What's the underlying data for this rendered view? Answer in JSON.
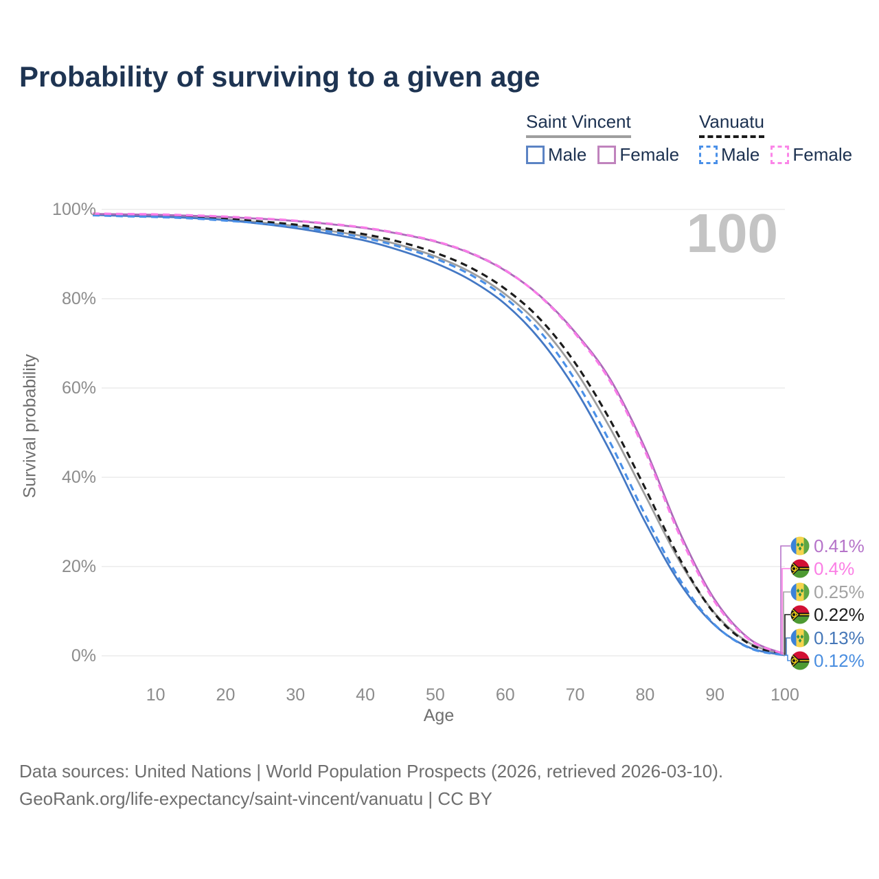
{
  "title": "Probability of surviving to a given age",
  "watermark": "100",
  "legend": {
    "groups": [
      {
        "name": "Saint Vincent",
        "line_style": "solid",
        "items": [
          {
            "label": "Male",
            "color": "#5b83c4"
          },
          {
            "label": "Female",
            "color": "#c083bd"
          }
        ]
      },
      {
        "name": "Vanuatu",
        "line_style": "dashed",
        "items": [
          {
            "label": "Male",
            "color": "#4a90e8"
          },
          {
            "label": "Female",
            "color": "#fb86e8"
          }
        ]
      }
    ]
  },
  "chart_data": {
    "type": "line",
    "title": "Probability of surviving to a given age",
    "xlabel": "Age",
    "ylabel": "Survival probability",
    "xlim": [
      1,
      100
    ],
    "ylim": [
      0,
      100
    ],
    "x_ticks": [
      10,
      20,
      30,
      40,
      50,
      60,
      70,
      80,
      90,
      100
    ],
    "y_ticks": [
      0,
      20,
      40,
      60,
      80,
      100
    ],
    "y_tick_suffix": "%",
    "grid": "horizontal",
    "ages": [
      1,
      5,
      10,
      15,
      20,
      25,
      30,
      35,
      40,
      45,
      50,
      55,
      60,
      65,
      70,
      75,
      80,
      85,
      90,
      95,
      100
    ],
    "series": [
      {
        "name": "Saint Vincent Overall",
        "country": "Saint Vincent",
        "sex": "overall",
        "color": "#9e9e9e",
        "line_style": "solid",
        "values": [
          98.9,
          98.7,
          98.5,
          98.2,
          97.8,
          97.1,
          96.3,
          95.2,
          93.9,
          92.0,
          89.5,
          86.0,
          81.0,
          74.0,
          64.0,
          51.0,
          36.0,
          21.0,
          9.5,
          2.8,
          0.25
        ]
      },
      {
        "name": "Vanuatu Overall",
        "country": "Vanuatu",
        "sex": "overall",
        "color": "#1c1c1c",
        "line_style": "dashed",
        "values": [
          98.9,
          98.8,
          98.6,
          98.3,
          97.9,
          97.3,
          96.6,
          95.6,
          94.4,
          92.7,
          90.3,
          87.0,
          82.2,
          75.4,
          65.6,
          52.8,
          37.6,
          21.6,
          9.3,
          2.6,
          0.22
        ]
      },
      {
        "name": "Saint Vincent Male",
        "country": "Saint Vincent",
        "sex": "male",
        "color": "#4478c4",
        "line_style": "solid",
        "values": [
          98.8,
          98.6,
          98.4,
          98.1,
          97.6,
          96.8,
          95.8,
          94.5,
          93.0,
          90.8,
          88.0,
          84.2,
          78.8,
          70.8,
          59.8,
          45.8,
          30.0,
          16.2,
          6.8,
          1.8,
          0.13
        ]
      },
      {
        "name": "Vanuatu Male",
        "country": "Vanuatu",
        "sex": "male",
        "color": "#4a90e8",
        "line_style": "dashed",
        "values": [
          98.7,
          98.5,
          98.3,
          98.0,
          97.5,
          96.9,
          96.1,
          95.0,
          93.6,
          91.6,
          89.0,
          85.4,
          80.2,
          72.6,
          61.8,
          47.8,
          31.6,
          17.0,
          6.9,
          1.7,
          0.12
        ]
      },
      {
        "name": "Saint Vincent Female",
        "country": "Saint Vincent",
        "sex": "female",
        "color": "#ab6ab8",
        "line_style": "solid",
        "values": [
          99.0,
          98.9,
          98.8,
          98.6,
          98.3,
          97.9,
          97.4,
          96.7,
          95.8,
          94.5,
          92.8,
          90.2,
          86.3,
          80.6,
          72.5,
          62.0,
          46.5,
          27.5,
          12.5,
          3.7,
          0.41
        ]
      },
      {
        "name": "Vanuatu Female",
        "country": "Vanuatu",
        "sex": "female",
        "color": "#f97ce8",
        "line_style": "dashed",
        "values": [
          99.1,
          99.0,
          98.9,
          98.7,
          98.4,
          98.0,
          97.5,
          96.8,
          95.9,
          94.6,
          92.9,
          90.3,
          86.4,
          80.5,
          72.2,
          61.5,
          45.8,
          26.8,
          12.0,
          3.5,
          0.4
        ]
      }
    ]
  },
  "end_labels": [
    {
      "flag": "saint-vincent-flag",
      "value": "0.41%",
      "end_value": 0.41,
      "color": "#b573c9"
    },
    {
      "flag": "vanuatu-flag",
      "value": "0.4%",
      "end_value": 0.4,
      "color": "#fb7ee5"
    },
    {
      "flag": "saint-vincent-flag",
      "value": "0.25%",
      "end_value": 0.25,
      "color": "#a3a3a3"
    },
    {
      "flag": "vanuatu-flag",
      "value": "0.22%",
      "end_value": 0.22,
      "color": "#1c1c1c"
    },
    {
      "flag": "saint-vincent-flag",
      "value": "0.13%",
      "end_value": 0.13,
      "color": "#4577b8"
    },
    {
      "flag": "vanuatu-flag",
      "value": "0.12%",
      "end_value": 0.12,
      "color": "#4a8ee0"
    }
  ],
  "footer": {
    "line1": "Data sources: United Nations | World Population Prospects (2026, retrieved 2026-03-10).",
    "line2": "GeoRank.org/life-expectancy/saint-vincent/vanuatu | CC BY"
  }
}
